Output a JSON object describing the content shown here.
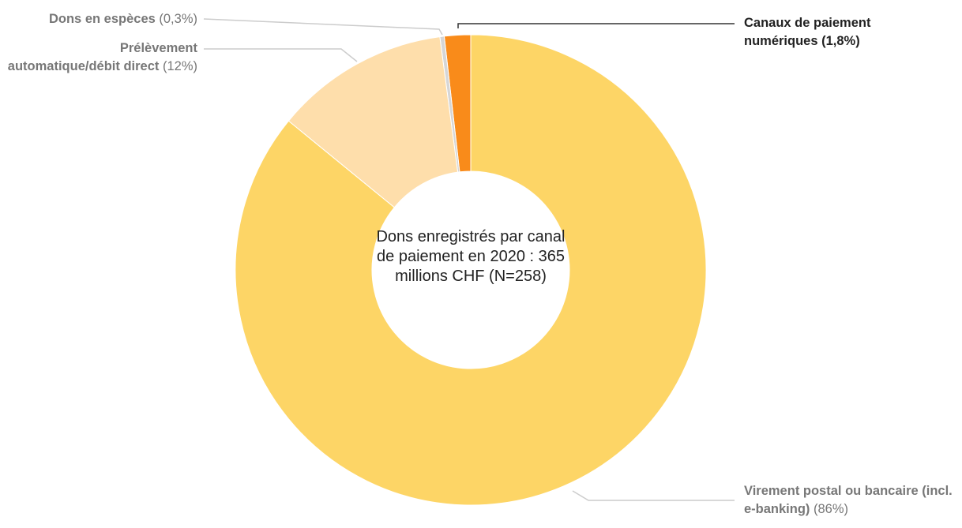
{
  "chart_data": {
    "type": "donut",
    "center_label": "Dons enregistrés par canal de paiement en 2020 : 365 millions CHF (N=258)",
    "categories": [
      "Virement postal ou bancaire (incl. e-banking)",
      "Prélèvement automatique/débit direct",
      "Dons en espèces",
      "Canaux de paiement numériques"
    ],
    "values": [
      86,
      12,
      0.3,
      1.8
    ],
    "value_labels": [
      "(86%)",
      "(12%)",
      "(0,3%)",
      "(1,8%)"
    ],
    "colors": [
      "#fdd566",
      "#fedeab",
      "#d6d6d6",
      "#f98b1a"
    ]
  }
}
